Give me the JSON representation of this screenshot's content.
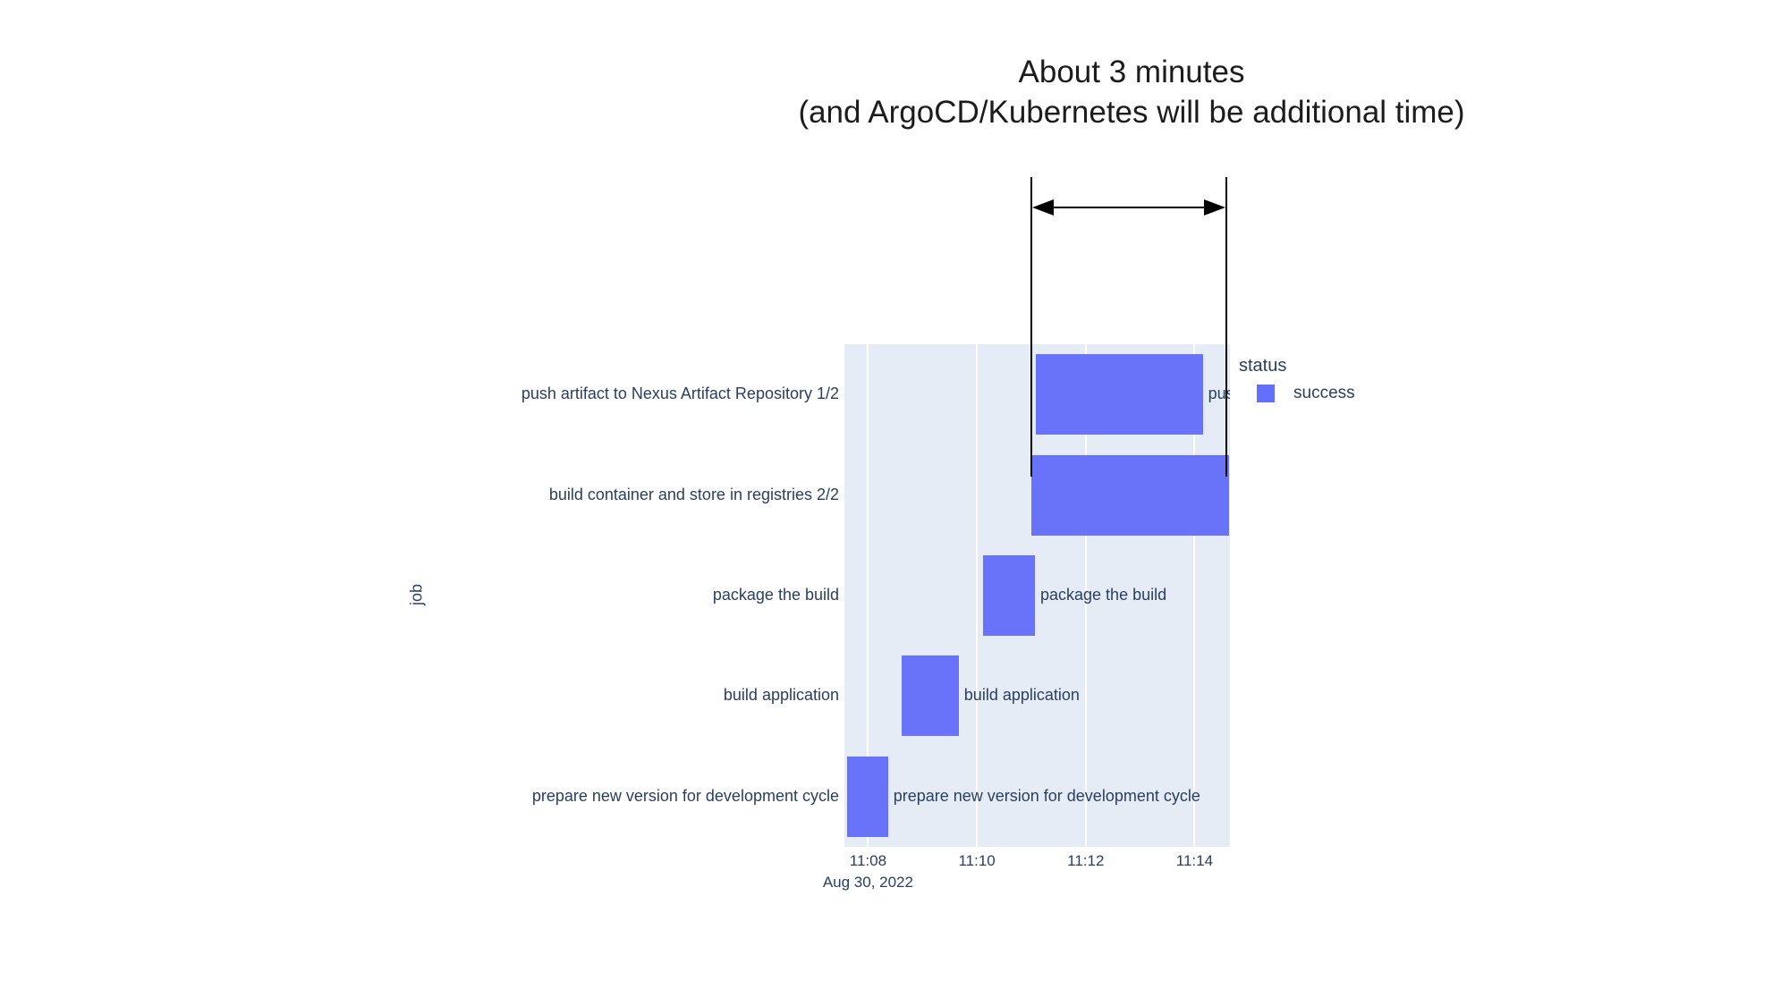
{
  "figure": {
    "title_line1": "About 3 minutes",
    "title_line2": "(and ArgoCD/Kubernetes will be additional time)"
  },
  "chart_data": {
    "type": "bar",
    "subtype": "gantt-timeline",
    "title": "",
    "xlabel": "",
    "ylabel": "job",
    "date_label": "Aug 30, 2022",
    "x_ticks": [
      "11:08",
      "11:10",
      "11:12",
      "11:14"
    ],
    "x_range": [
      "11:07:34",
      "11:14:39"
    ],
    "grid": true,
    "jobs": [
      {
        "name": "push artifact to Nexus Artifact Repository 1/2",
        "status": "success",
        "start": "11:11:05",
        "end": "11:14:09"
      },
      {
        "name": "build container and store in registries 2/2",
        "status": "success",
        "start": "11:11:00",
        "end": "11:14:38"
      },
      {
        "name": "package the build",
        "status": "success",
        "start": "11:10:07",
        "end": "11:11:04"
      },
      {
        "name": "build application",
        "status": "success",
        "start": "11:08:37",
        "end": "11:09:40"
      },
      {
        "name": "prepare new version for development cycle",
        "status": "success",
        "start": "11:07:37",
        "end": "11:08:22"
      }
    ],
    "legend": {
      "title": "status",
      "position": "right",
      "items": [
        {
          "label": "success",
          "color": "#636EFA"
        }
      ]
    },
    "annotation_span": {
      "from": "11:11:00",
      "to": "11:14:35"
    },
    "colors": {
      "bar": "#636EFA",
      "plot_bg": "#E5ECF6",
      "grid": "#FFFFFF",
      "text": "#2A3F5F",
      "annotation": "#000000"
    }
  }
}
